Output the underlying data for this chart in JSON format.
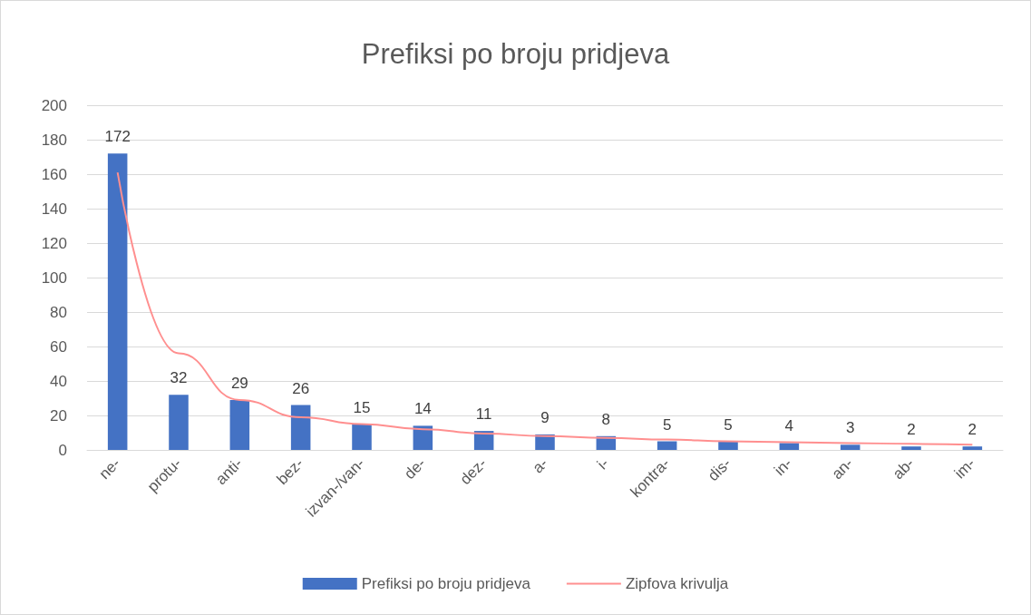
{
  "chart_data": {
    "type": "bar",
    "title": "Prefiksi po broju pridjeva",
    "categories": [
      "ne-",
      "protu-",
      "anti-",
      "bez-",
      "izvan-/van-",
      "de-",
      "dez-",
      "a-",
      "i-",
      "kontra-",
      "dis-",
      "in-",
      "an-",
      "ab-",
      "im-"
    ],
    "series": [
      {
        "name": "Prefiksi po broju pridjeva",
        "color": "#4472c4",
        "data_labels": true,
        "values": [
          172,
          32,
          29,
          26,
          15,
          14,
          11,
          9,
          8,
          5,
          5,
          4,
          3,
          2,
          2
        ]
      },
      {
        "name": "Zipfova krivulja",
        "type": "line",
        "color": "#ff8f8f",
        "values": [
          161,
          56,
          29,
          19,
          15,
          12,
          9.5,
          8,
          7,
          6,
          5,
          4.5,
          4,
          3.5,
          3
        ]
      }
    ],
    "ylim": [
      0,
      200
    ],
    "yticks": [
      0,
      20,
      40,
      60,
      80,
      100,
      120,
      140,
      160,
      180,
      200
    ],
    "grid": "y",
    "legend": "bottom",
    "marker": "none",
    "line_style": "solid"
  }
}
